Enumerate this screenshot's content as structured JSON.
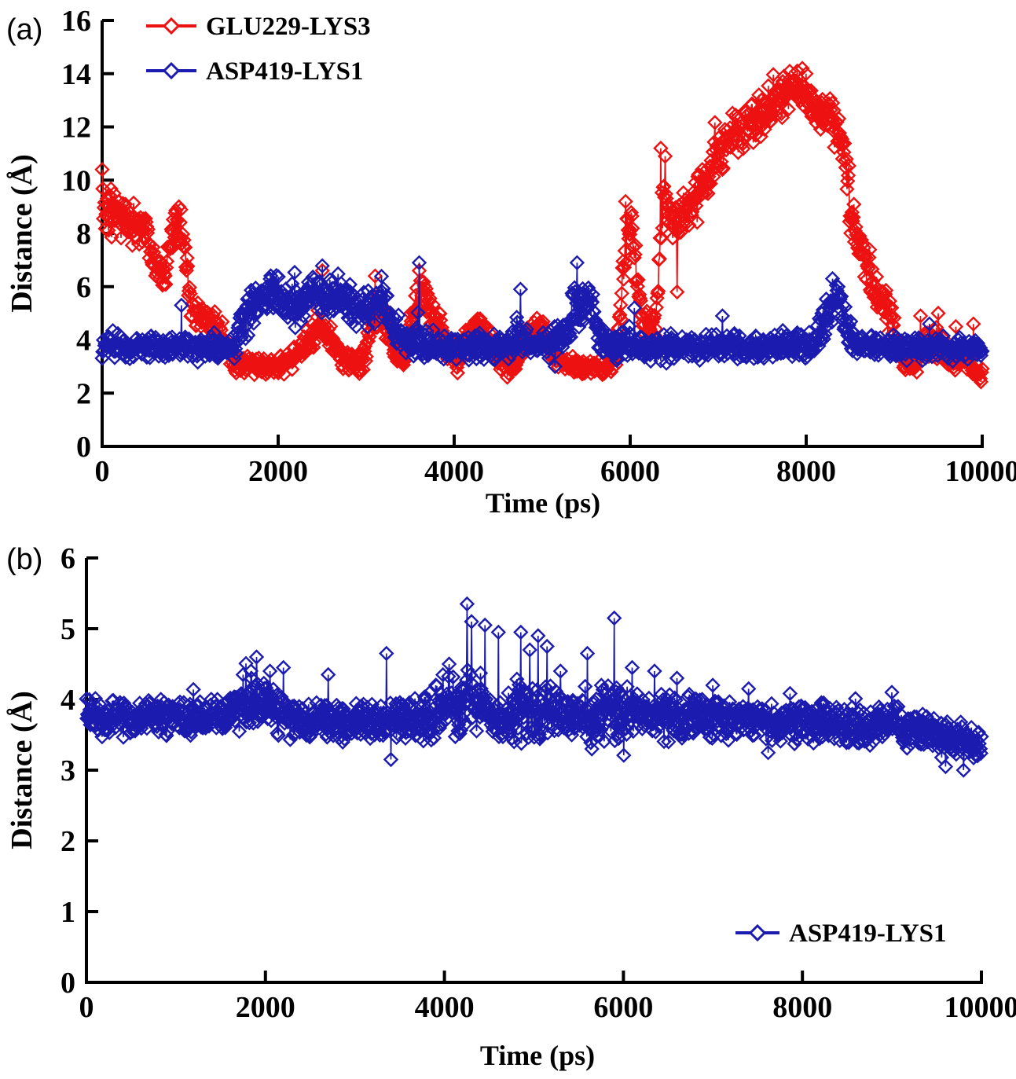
{
  "figure": {
    "background": "#ffffff",
    "axis_color": "#000000",
    "series_colors": {
      "red": "#ee1111",
      "blue": "#1b1bb0"
    }
  },
  "chart_data": [
    {
      "type": "line",
      "panel_tag": "(a)",
      "xlabel": "Time (ps)",
      "ylabel": "Distance (Å)",
      "xlim": [
        0,
        10000
      ],
      "ylim": [
        0,
        16
      ],
      "xticks": [
        0,
        2000,
        4000,
        6000,
        8000,
        10000
      ],
      "yticks": [
        0,
        2,
        4,
        6,
        8,
        10,
        12,
        14,
        16
      ],
      "grid": false,
      "legend_position": "top-left",
      "marker": "open-diamond",
      "series": [
        {
          "name": "GLU229-LYS3",
          "color": "#ee1111",
          "n": 1400,
          "seed": 11,
          "clamp": [
            2.4,
            14.2
          ],
          "envelope": [
            [
              0,
              9.1,
              1.3
            ],
            [
              150,
              8.8,
              1.0
            ],
            [
              300,
              8.4,
              0.9
            ],
            [
              500,
              8.1,
              0.8
            ],
            [
              620,
              6.6,
              0.7
            ],
            [
              700,
              6.2,
              0.6
            ],
            [
              800,
              8.2,
              0.8
            ],
            [
              880,
              8.7,
              0.6
            ],
            [
              950,
              7.0,
              0.8
            ],
            [
              1020,
              5.3,
              0.7
            ],
            [
              1150,
              4.9,
              0.6
            ],
            [
              1300,
              4.5,
              0.6
            ],
            [
              1400,
              4.0,
              0.7
            ],
            [
              1500,
              3.1,
              0.4
            ],
            [
              1800,
              3.0,
              0.35
            ],
            [
              2100,
              3.1,
              0.4
            ],
            [
              2300,
              3.7,
              0.6
            ],
            [
              2450,
              4.5,
              0.7
            ],
            [
              2600,
              4.1,
              0.6
            ],
            [
              2750,
              3.2,
              0.4
            ],
            [
              2950,
              3.1,
              0.4
            ],
            [
              3050,
              4.6,
              0.9
            ],
            [
              3150,
              5.2,
              0.8
            ],
            [
              3250,
              4.4,
              0.7
            ],
            [
              3350,
              3.3,
              0.4
            ],
            [
              3450,
              3.4,
              0.5
            ],
            [
              3550,
              5.2,
              0.9
            ],
            [
              3650,
              5.8,
              0.7
            ],
            [
              3750,
              5.0,
              0.8
            ],
            [
              3850,
              4.3,
              0.6
            ],
            [
              3950,
              3.6,
              0.5
            ],
            [
              4050,
              3.1,
              0.4
            ],
            [
              4200,
              4.6,
              0.6
            ],
            [
              4350,
              4.4,
              0.6
            ],
            [
              4500,
              3.2,
              0.4
            ],
            [
              4700,
              3.1,
              0.4
            ],
            [
              4850,
              4.2,
              0.5
            ],
            [
              5000,
              4.4,
              0.5
            ],
            [
              5150,
              3.3,
              0.4
            ],
            [
              5400,
              3.0,
              0.35
            ],
            [
              5700,
              2.9,
              0.35
            ],
            [
              5850,
              3.6,
              0.6
            ],
            [
              5950,
              7.5,
              1.2
            ],
            [
              6020,
              8.3,
              0.9
            ],
            [
              6100,
              5.5,
              0.8
            ],
            [
              6200,
              4.3,
              0.5
            ],
            [
              6300,
              5.0,
              1.2
            ],
            [
              6380,
              9.8,
              1.0
            ],
            [
              6450,
              8.6,
              0.9
            ],
            [
              6550,
              8.6,
              0.9
            ],
            [
              6700,
              9.3,
              0.9
            ],
            [
              6850,
              10.0,
              1.0
            ],
            [
              7000,
              11.0,
              1.0
            ],
            [
              7150,
              11.6,
              1.0
            ],
            [
              7300,
              11.9,
              1.1
            ],
            [
              7450,
              12.4,
              1.0
            ],
            [
              7600,
              12.8,
              0.9
            ],
            [
              7750,
              13.2,
              0.8
            ],
            [
              7900,
              13.5,
              0.7
            ],
            [
              8000,
              13.3,
              0.8
            ],
            [
              8100,
              12.4,
              0.9
            ],
            [
              8250,
              12.4,
              0.8
            ],
            [
              8400,
              11.6,
              1.0
            ],
            [
              8500,
              9.0,
              1.0
            ],
            [
              8650,
              7.2,
              0.8
            ],
            [
              8800,
              5.6,
              0.8
            ],
            [
              8900,
              5.4,
              0.7
            ],
            [
              9000,
              4.3,
              0.6
            ],
            [
              9100,
              3.2,
              0.4
            ],
            [
              9250,
              3.0,
              0.4
            ],
            [
              9350,
              3.9,
              0.6
            ],
            [
              9500,
              3.9,
              0.7
            ],
            [
              9650,
              3.1,
              0.4
            ],
            [
              9800,
              3.6,
              0.7
            ],
            [
              9950,
              2.7,
              0.3
            ],
            [
              10000,
              2.7,
              0.3
            ]
          ],
          "spikes": [
            [
              0,
              10.4
            ],
            [
              870,
              9.0
            ],
            [
              2500,
              6.6
            ],
            [
              3100,
              6.4
            ],
            [
              3600,
              6.6
            ],
            [
              5950,
              9.2
            ],
            [
              6180,
              4.0
            ],
            [
              6350,
              11.2
            ],
            [
              6400,
              10.9
            ],
            [
              6530,
              5.8
            ],
            [
              7700,
              13.4
            ],
            [
              7900,
              14.1
            ],
            [
              8000,
              14.0
            ],
            [
              8300,
              12.9
            ],
            [
              9300,
              4.9
            ],
            [
              9500,
              5.0
            ],
            [
              9700,
              4.5
            ],
            [
              9900,
              4.6
            ]
          ]
        },
        {
          "name": "ASP419-LYS1",
          "color": "#1b1bb0",
          "n": 1400,
          "seed": 23,
          "clamp": [
            3.0,
            7.0
          ],
          "envelope": [
            [
              0,
              3.75,
              0.5
            ],
            [
              1500,
              3.75,
              0.5
            ],
            [
              1600,
              4.6,
              0.8
            ],
            [
              1750,
              5.5,
              0.8
            ],
            [
              2000,
              5.6,
              0.9
            ],
            [
              2200,
              5.2,
              0.9
            ],
            [
              2400,
              5.6,
              0.8
            ],
            [
              2600,
              5.7,
              0.8
            ],
            [
              2800,
              5.3,
              0.8
            ],
            [
              3000,
              5.2,
              0.8
            ],
            [
              3200,
              5.4,
              0.7
            ],
            [
              3350,
              4.4,
              0.8
            ],
            [
              3450,
              3.8,
              0.5
            ],
            [
              3600,
              4.2,
              1.0
            ],
            [
              3700,
              3.8,
              0.6
            ],
            [
              4000,
              3.75,
              0.5
            ],
            [
              4600,
              3.75,
              0.5
            ],
            [
              4750,
              4.3,
              0.9
            ],
            [
              4850,
              3.8,
              0.5
            ],
            [
              5250,
              4.0,
              0.7
            ],
            [
              5350,
              5.3,
              0.9
            ],
            [
              5450,
              5.4,
              0.9
            ],
            [
              5550,
              5.6,
              0.7
            ],
            [
              5650,
              4.0,
              0.6
            ],
            [
              5800,
              3.7,
              0.5
            ],
            [
              6000,
              3.9,
              0.7
            ],
            [
              6200,
              3.7,
              0.5
            ],
            [
              7000,
              3.75,
              0.5
            ],
            [
              8100,
              3.8,
              0.5
            ],
            [
              8250,
              5.0,
              0.9
            ],
            [
              8350,
              5.6,
              0.7
            ],
            [
              8450,
              4.5,
              0.8
            ],
            [
              8550,
              3.8,
              0.5
            ],
            [
              9000,
              3.7,
              0.5
            ],
            [
              10000,
              3.6,
              0.5
            ]
          ],
          "spikes": [
            [
              900,
              5.3
            ],
            [
              3600,
              6.9
            ],
            [
              4750,
              5.9
            ],
            [
              5400,
              6.9
            ],
            [
              6050,
              5.2
            ],
            [
              7050,
              4.9
            ],
            [
              8150,
              4.8
            ],
            [
              8300,
              6.3
            ],
            [
              9400,
              4.6
            ]
          ]
        }
      ]
    },
    {
      "type": "line",
      "panel_tag": "(b)",
      "xlabel": "Time (ps)",
      "ylabel": "Distance (Å)",
      "xlim": [
        0,
        10000
      ],
      "ylim": [
        0,
        6
      ],
      "xticks": [
        0,
        2000,
        4000,
        6000,
        8000,
        10000
      ],
      "yticks": [
        0,
        1,
        2,
        3,
        4,
        5,
        6
      ],
      "grid": false,
      "legend_position": "bottom-right",
      "marker": "open-diamond",
      "series": [
        {
          "name": "ASP419-LYS1",
          "color": "#1b1bb0",
          "n": 1600,
          "seed": 37,
          "clamp": [
            2.95,
            5.4
          ],
          "envelope": [
            [
              0,
              3.75,
              0.28
            ],
            [
              1500,
              3.75,
              0.28
            ],
            [
              1700,
              3.9,
              0.35
            ],
            [
              1850,
              4.0,
              0.45
            ],
            [
              2000,
              3.95,
              0.45
            ],
            [
              2150,
              3.8,
              0.35
            ],
            [
              2400,
              3.7,
              0.3
            ],
            [
              2600,
              3.75,
              0.35
            ],
            [
              2800,
              3.65,
              0.3
            ],
            [
              3000,
              3.7,
              0.3
            ],
            [
              3300,
              3.7,
              0.3
            ],
            [
              3600,
              3.75,
              0.32
            ],
            [
              3900,
              3.8,
              0.4
            ],
            [
              4100,
              3.9,
              0.5
            ],
            [
              4250,
              3.95,
              0.55
            ],
            [
              4400,
              3.9,
              0.5
            ],
            [
              4550,
              3.8,
              0.45
            ],
            [
              4700,
              3.8,
              0.45
            ],
            [
              4900,
              3.85,
              0.5
            ],
            [
              5100,
              3.8,
              0.5
            ],
            [
              5300,
              3.75,
              0.45
            ],
            [
              5500,
              3.8,
              0.4
            ],
            [
              5700,
              3.75,
              0.4
            ],
            [
              5900,
              3.85,
              0.5
            ],
            [
              6100,
              3.8,
              0.4
            ],
            [
              6300,
              3.8,
              0.4
            ],
            [
              6500,
              3.75,
              0.38
            ],
            [
              6800,
              3.75,
              0.35
            ],
            [
              7200,
              3.7,
              0.3
            ],
            [
              7600,
              3.7,
              0.3
            ],
            [
              8000,
              3.68,
              0.3
            ],
            [
              8400,
              3.65,
              0.3
            ],
            [
              8800,
              3.6,
              0.3
            ],
            [
              9000,
              3.7,
              0.35
            ],
            [
              9200,
              3.6,
              0.3
            ],
            [
              9500,
              3.5,
              0.3
            ],
            [
              9800,
              3.4,
              0.3
            ],
            [
              10000,
              3.4,
              0.3
            ]
          ],
          "spikes": [
            [
              1750,
              4.35
            ],
            [
              1900,
              4.6
            ],
            [
              2050,
              4.4
            ],
            [
              2200,
              4.45
            ],
            [
              2700,
              4.35
            ],
            [
              3350,
              4.65
            ],
            [
              3400,
              3.15
            ],
            [
              3900,
              4.2
            ],
            [
              4050,
              4.5
            ],
            [
              4250,
              5.35
            ],
            [
              4300,
              5.1
            ],
            [
              4450,
              5.05
            ],
            [
              4600,
              4.95
            ],
            [
              4850,
              4.95
            ],
            [
              4950,
              4.7
            ],
            [
              5050,
              4.9
            ],
            [
              5150,
              4.75
            ],
            [
              5300,
              4.4
            ],
            [
              5600,
              4.65
            ],
            [
              5650,
              3.3
            ],
            [
              5900,
              5.15
            ],
            [
              6100,
              4.45
            ],
            [
              6350,
              4.4
            ],
            [
              6600,
              4.3
            ],
            [
              7000,
              4.2
            ],
            [
              7400,
              4.15
            ],
            [
              9000,
              4.1
            ],
            [
              9600,
              3.05
            ],
            [
              9800,
              3.0
            ]
          ]
        }
      ]
    }
  ]
}
